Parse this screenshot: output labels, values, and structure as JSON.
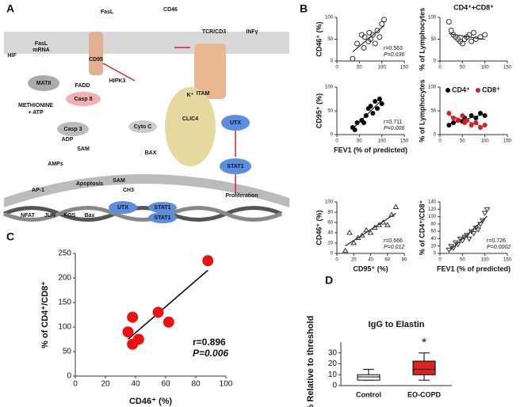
{
  "panel_labels": [
    "A",
    "B",
    "C",
    "D"
  ],
  "diagram": {
    "labels": [
      "FasL",
      "FasL",
      "mRNA",
      "HIF",
      "CD95",
      "FADD",
      "MATII",
      "HIPK3",
      "CD46",
      "TCR/CD3",
      "INFγ",
      "ITAM",
      "Casp 8",
      "METHIONINE",
      "+ ATP",
      "Casp 3",
      "Cyto C",
      "ADP",
      "SAM",
      "AMPs",
      "K⁺",
      "BAX",
      "CLIC4",
      "UTX",
      "STAT1",
      "Apoptosis",
      "SAM",
      "CH3",
      "AP-1",
      "Proliferation",
      "UTX",
      "STAT1",
      "STAT1",
      "NFAT",
      "JUN",
      "FOS",
      "Bax"
    ]
  },
  "chart_data": [
    {
      "type": "scatter",
      "marker": "open-circle",
      "color": "#333333",
      "ylabel": "CD46⁺ (%)",
      "annotation": [
        "r=0.563",
        "P=0.036"
      ],
      "x": [
        35,
        45,
        55,
        60,
        62,
        70,
        72,
        75,
        80,
        85,
        90,
        95,
        100,
        105
      ],
      "y": [
        5,
        40,
        60,
        30,
        55,
        45,
        65,
        50,
        60,
        40,
        70,
        55,
        85,
        95
      ],
      "xlim": [
        0,
        150
      ],
      "xticks": [
        0,
        50,
        100,
        150
      ],
      "ylim": [
        0,
        100
      ],
      "yticks": [
        0,
        50,
        100
      ]
    },
    {
      "type": "scatter",
      "marker": "open-circle",
      "color": "#333333",
      "title": "CD4⁺+CD8⁺",
      "ylabel": "% of Lymphocytes",
      "x": [
        20,
        25,
        30,
        35,
        40,
        45,
        50,
        55,
        60,
        65,
        70,
        75,
        80,
        90,
        100
      ],
      "y": [
        90,
        70,
        60,
        55,
        50,
        45,
        40,
        50,
        55,
        60,
        45,
        65,
        50,
        55,
        60
      ],
      "xlim": [
        0,
        150
      ],
      "xticks": [
        0,
        50,
        100,
        150
      ],
      "ylim": [
        0,
        100
      ],
      "yticks": [
        0,
        50,
        100
      ]
    },
    {
      "type": "scatter",
      "marker": "filled-circle",
      "color": "#000000",
      "ylabel": "CD95⁺ (%)",
      "xlabel": "FEV1 (% of predicted)",
      "annotation": [
        "r=0.711",
        "P=0.006"
      ],
      "x": [
        35,
        40,
        45,
        55,
        60,
        65,
        70,
        75,
        80,
        85,
        90,
        95,
        100
      ],
      "y": [
        15,
        10,
        25,
        30,
        25,
        40,
        55,
        60,
        45,
        70,
        55,
        75,
        65
      ],
      "xlim": [
        0,
        150
      ],
      "xticks": [
        0,
        50,
        100,
        150
      ],
      "ylim": [
        0,
        100
      ],
      "yticks": [
        0,
        50,
        100
      ]
    },
    {
      "type": "scatter",
      "marker": "filled-circle",
      "ylabel": "% of Lymphocytes",
      "series": [
        {
          "name": "CD4⁺",
          "color": "#000000",
          "x": [
            20,
            30,
            40,
            50,
            55,
            60,
            70,
            80,
            90,
            100
          ],
          "y": [
            20,
            25,
            30,
            28,
            35,
            30,
            40,
            35,
            45,
            40
          ]
        },
        {
          "name": "CD8⁺",
          "color": "#d62020",
          "x": [
            20,
            30,
            40,
            50,
            55,
            60,
            70,
            80,
            90,
            100
          ],
          "y": [
            45,
            35,
            30,
            40,
            25,
            30,
            20,
            25,
            15,
            20
          ]
        }
      ],
      "xlim": [
        0,
        150
      ],
      "xticks": [
        0,
        50,
        100,
        150
      ],
      "ylim": [
        0,
        100
      ],
      "yticks": [
        0,
        50,
        100
      ]
    },
    {
      "type": "scatter",
      "marker": "open-triangle",
      "color": "#333333",
      "ylabel": "CD46⁺ (%)",
      "xlabel": "CD95⁺ (%)",
      "annotation": [
        "r=0.666",
        "P=0.012"
      ],
      "x": [
        10,
        15,
        20,
        25,
        30,
        35,
        40,
        45,
        50,
        55,
        60,
        65,
        70
      ],
      "y": [
        5,
        40,
        20,
        30,
        35,
        45,
        40,
        50,
        55,
        60,
        55,
        75,
        90
      ],
      "xlim": [
        0,
        80
      ],
      "xticks": [
        0,
        20,
        40,
        60,
        80
      ],
      "ylim": [
        0,
        100
      ],
      "yticks": [
        0,
        20,
        40,
        60,
        80,
        100
      ]
    },
    {
      "type": "scatter",
      "marker": "open-inverted-triangle",
      "color": "#333333",
      "ylabel": "% of CD4⁺/CD8⁺",
      "xlabel": "FEV1 (% of predicted)",
      "annotation": [
        "r=0.726",
        "P=0.0002"
      ],
      "x": [
        20,
        25,
        30,
        35,
        40,
        45,
        50,
        55,
        60,
        65,
        70,
        75,
        80,
        85,
        90,
        95,
        100,
        105
      ],
      "y": [
        10,
        20,
        15,
        30,
        25,
        40,
        35,
        45,
        50,
        40,
        60,
        55,
        70,
        65,
        80,
        90,
        110,
        120
      ],
      "xlim": [
        0,
        150
      ],
      "xticks": [
        0,
        50,
        100,
        150
      ],
      "ylim": [
        0,
        140
      ],
      "yticks": [
        0,
        20,
        40,
        60,
        80,
        100,
        120,
        140
      ]
    },
    {
      "type": "scatter",
      "marker": "big-circle",
      "color": "#ee1111",
      "ylabel": "% of CD4⁺/CD8⁺",
      "xlabel": "CD46⁺ (%)",
      "annotation": [
        "r=0.896",
        "P=0.006"
      ],
      "x": [
        35,
        38,
        38,
        42,
        55,
        62,
        88
      ],
      "y": [
        90,
        65,
        120,
        75,
        130,
        110,
        235
      ],
      "xlim": [
        0,
        100
      ],
      "xticks": [
        0,
        20,
        40,
        60,
        80,
        100
      ],
      "ylim": [
        0,
        250
      ],
      "yticks": [
        0,
        50,
        100,
        150,
        200,
        250
      ]
    },
    {
      "type": "box",
      "title": "IgG to Elastin",
      "ylabel": "% Relative to threshold",
      "categories": [
        "Control",
        "EO-COPD"
      ],
      "colors": [
        "#ffffff",
        "#dd2222"
      ],
      "boxes": [
        {
          "min": 5,
          "q1": 5,
          "median": 8,
          "q3": 10,
          "max": 15
        },
        {
          "min": 5,
          "q1": 10,
          "median": 15,
          "q3": 22.5,
          "max": 30
        }
      ],
      "annotation": "*",
      "ylim": [
        0,
        40
      ],
      "yticks": [
        0,
        10,
        20,
        30
      ]
    }
  ]
}
